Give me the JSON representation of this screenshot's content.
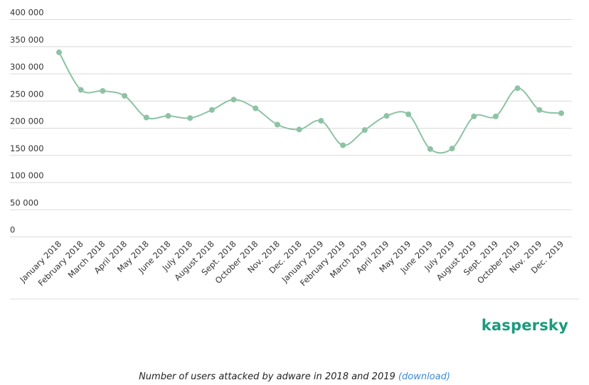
{
  "chart_data": {
    "type": "line",
    "title": "",
    "xlabel": "",
    "ylabel": "",
    "ylim": [
      0,
      400000
    ],
    "grid": true,
    "line_style": "smooth",
    "colors": {
      "series": "#8dc3a4",
      "grid": "#d9d9d9"
    },
    "y_ticks": [
      {
        "value": 0,
        "label": "0"
      },
      {
        "value": 50000,
        "label": "50 000"
      },
      {
        "value": 100000,
        "label": "100 000"
      },
      {
        "value": 150000,
        "label": "150 000"
      },
      {
        "value": 200000,
        "label": "200 000"
      },
      {
        "value": 250000,
        "label": "250 000"
      },
      {
        "value": 300000,
        "label": "300 000"
      },
      {
        "value": 350000,
        "label": "350 000"
      },
      {
        "value": 400000,
        "label": "400 000"
      }
    ],
    "categories": [
      "January 2018",
      "February 2018",
      "March 2018",
      "April 2018",
      "May 2018",
      "June 2018",
      "July 2018",
      "August 2018",
      "Sept. 2018",
      "October 2018",
      "Nov. 2018",
      "Dec. 2018",
      "January 2019",
      "February 2019",
      "March 2019",
      "April 2019",
      "May 2019",
      "June 2019",
      "July 2019",
      "August 2019",
      "Sept. 2019",
      "October 2019",
      "Nov. 2019",
      "Dec. 2019"
    ],
    "series": [
      {
        "values": [
          339000,
          270000,
          268000,
          259000,
          219000,
          222000,
          218000,
          233000,
          252000,
          236000,
          206000,
          197000,
          213000,
          168000,
          196000,
          222000,
          225000,
          161000,
          162000,
          221000,
          221000,
          273000,
          233000,
          227000
        ]
      }
    ]
  },
  "logo": {
    "text": "kaspersky",
    "color": "#1a9a7e"
  },
  "caption": {
    "text": "Number of users attacked by adware in 2018 and 2019",
    "link_text": "(download)",
    "link_color": "#3b8bd0"
  }
}
